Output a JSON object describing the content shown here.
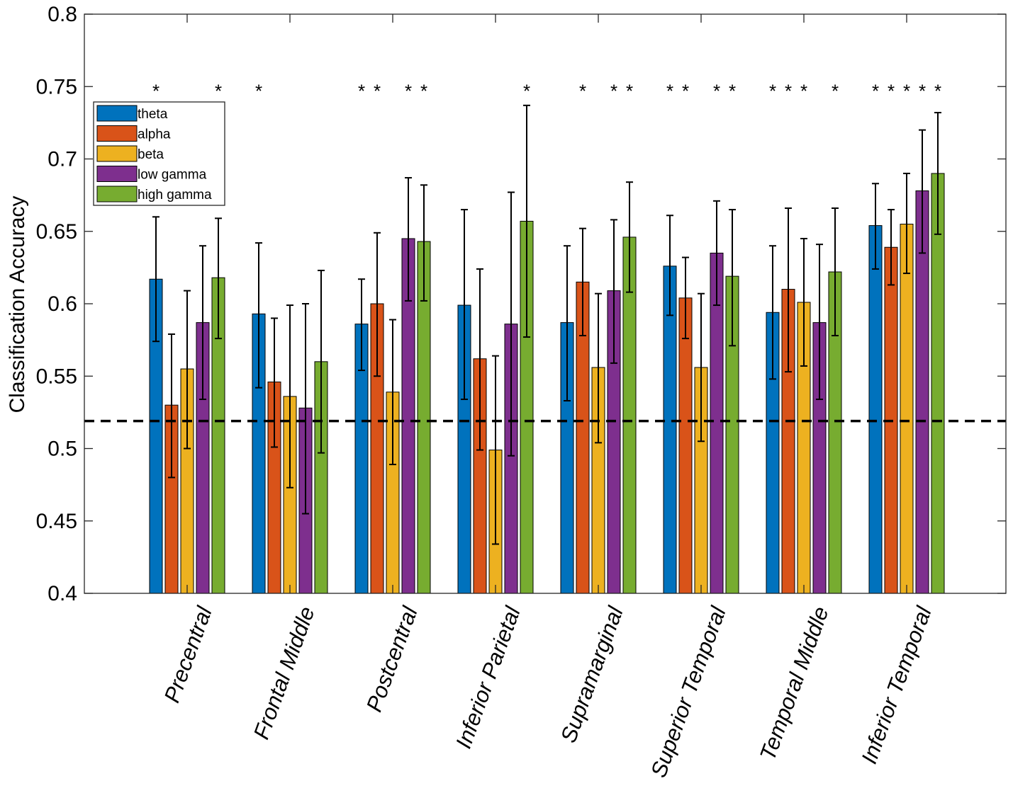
{
  "chart_data": {
    "type": "bar",
    "title": "",
    "xlabel": "",
    "ylabel": "Classification Accuracy",
    "ylim": [
      0.4,
      0.8
    ],
    "yticks": [
      0.4,
      0.45,
      0.5,
      0.55,
      0.6,
      0.65,
      0.7,
      0.75,
      0.8
    ],
    "ytick_labels": [
      "0.4",
      "0.45",
      "0.5",
      "0.55",
      "0.6",
      "0.65",
      "0.7",
      "0.75",
      "0.8"
    ],
    "chance_level": 0.519,
    "significance_marker": "*",
    "significance_y": 0.75,
    "legend_position": "top-left",
    "categories": [
      "Precentral",
      "Frontal Middle",
      "Postcentral",
      "Inferior Parietal",
      "Supramarginal",
      "Superior Temporal",
      "Temporal Middle",
      "Inferior Temporal"
    ],
    "series": [
      {
        "name": "theta",
        "color": "#0072BD",
        "values": [
          0.617,
          0.593,
          0.586,
          0.599,
          0.587,
          0.626,
          0.594,
          0.654
        ],
        "err_low": [
          0.574,
          0.542,
          0.554,
          0.534,
          0.533,
          0.592,
          0.548,
          0.624
        ],
        "err_high": [
          0.66,
          0.642,
          0.617,
          0.665,
          0.64,
          0.661,
          0.64,
          0.683
        ],
        "significant": [
          true,
          true,
          true,
          false,
          false,
          true,
          true,
          true
        ]
      },
      {
        "name": "alpha",
        "color": "#D95319",
        "values": [
          0.53,
          0.546,
          0.6,
          0.562,
          0.615,
          0.604,
          0.61,
          0.639
        ],
        "err_low": [
          0.48,
          0.501,
          0.55,
          0.499,
          0.578,
          0.576,
          0.553,
          0.613
        ],
        "err_high": [
          0.579,
          0.59,
          0.649,
          0.624,
          0.652,
          0.632,
          0.666,
          0.665
        ],
        "significant": [
          false,
          false,
          true,
          false,
          true,
          true,
          true,
          true
        ]
      },
      {
        "name": "beta",
        "color": "#EDB120",
        "values": [
          0.555,
          0.536,
          0.539,
          0.499,
          0.556,
          0.556,
          0.601,
          0.655
        ],
        "err_low": [
          0.5,
          0.473,
          0.489,
          0.434,
          0.504,
          0.505,
          0.557,
          0.621
        ],
        "err_high": [
          0.609,
          0.599,
          0.589,
          0.564,
          0.607,
          0.607,
          0.645,
          0.69
        ],
        "significant": [
          false,
          false,
          false,
          false,
          false,
          false,
          true,
          true
        ]
      },
      {
        "name": "low gamma",
        "color": "#7E2F8E",
        "values": [
          0.587,
          0.528,
          0.645,
          0.586,
          0.609,
          0.635,
          0.587,
          0.678
        ],
        "err_low": [
          0.534,
          0.455,
          0.602,
          0.495,
          0.559,
          0.599,
          0.534,
          0.635
        ],
        "err_high": [
          0.64,
          0.6,
          0.687,
          0.677,
          0.658,
          0.671,
          0.641,
          0.72
        ],
        "significant": [
          false,
          false,
          true,
          false,
          true,
          true,
          false,
          true
        ]
      },
      {
        "name": "high gamma",
        "color": "#77AC30",
        "values": [
          0.618,
          0.56,
          0.643,
          0.657,
          0.646,
          0.619,
          0.622,
          0.69
        ],
        "err_low": [
          0.576,
          0.497,
          0.602,
          0.577,
          0.608,
          0.571,
          0.578,
          0.648
        ],
        "err_high": [
          0.659,
          0.623,
          0.682,
          0.737,
          0.684,
          0.665,
          0.666,
          0.732
        ],
        "significant": [
          true,
          false,
          true,
          true,
          true,
          true,
          true,
          true
        ]
      }
    ]
  }
}
